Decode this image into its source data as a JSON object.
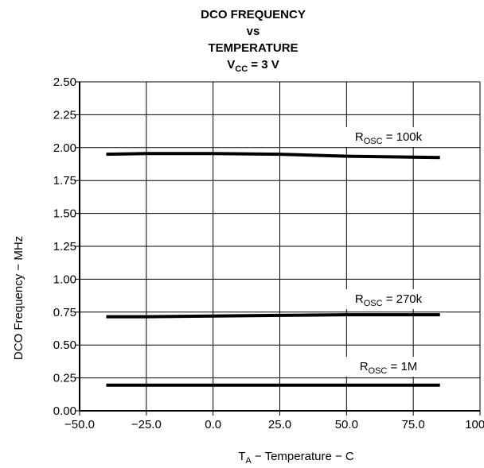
{
  "chart_data": {
    "type": "line",
    "title_lines": [
      "DCO FREQUENCY",
      "vs",
      "TEMPERATURE"
    ],
    "title_vcc": {
      "main": "V",
      "sub": "CC",
      "rest": " = 3 V"
    },
    "xlabel": {
      "main": "T",
      "sub": "A",
      "rest": " − Temperature −   C"
    },
    "ylabel": "DCO Frequency − MHz",
    "xlim": [
      -50,
      100
    ],
    "ylim": [
      0,
      2.5
    ],
    "x_ticks": [
      -50,
      -25,
      0,
      25,
      50,
      75,
      100
    ],
    "x_tick_labels": [
      "−50.0",
      "−25.0",
      "0.0",
      "25.0",
      "50.0",
      "75.0",
      "100.0"
    ],
    "y_ticks": [
      0,
      0.25,
      0.5,
      0.75,
      1.0,
      1.25,
      1.5,
      1.75,
      2.0,
      2.25,
      2.5
    ],
    "y_tick_labels": [
      "0.00",
      "0.25",
      "0.50",
      "0.75",
      "1.00",
      "1.25",
      "1.50",
      "1.75",
      "2.00",
      "2.25",
      "2.50"
    ],
    "grid": true,
    "series": [
      {
        "name": {
          "main": "R",
          "sub": "OSC",
          "rest": " = 100k"
        },
        "x": [
          -40,
          -25,
          0,
          25,
          50,
          85
        ],
        "y": [
          1.95,
          1.955,
          1.955,
          1.95,
          1.935,
          1.925
        ]
      },
      {
        "name": {
          "main": "R",
          "sub": "OSC",
          "rest": " = 270k"
        },
        "x": [
          -40,
          -25,
          0,
          25,
          50,
          85
        ],
        "y": [
          0.715,
          0.715,
          0.72,
          0.725,
          0.73,
          0.73
        ]
      },
      {
        "name": {
          "main": "R",
          "sub": "OSC",
          "rest": " = 1M"
        },
        "x": [
          -40,
          -25,
          0,
          25,
          50,
          85
        ],
        "y": [
          0.195,
          0.195,
          0.195,
          0.195,
          0.195,
          0.195
        ]
      }
    ]
  }
}
